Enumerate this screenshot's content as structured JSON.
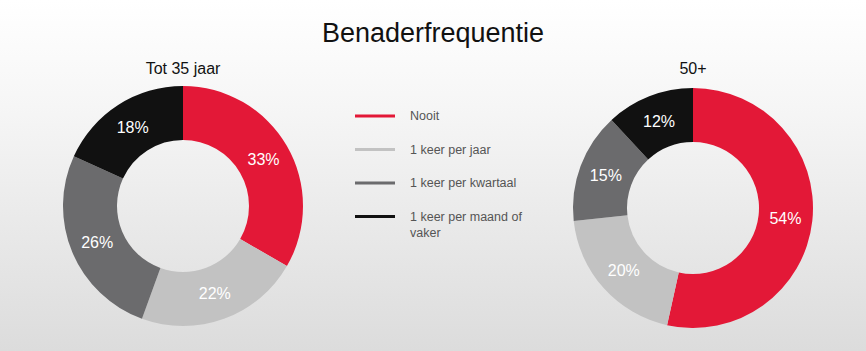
{
  "chart_data": {
    "type": "donut",
    "title": "Benaderfrequentie",
    "categories": [
      "Nooit",
      "1 keer per jaar",
      "1 keer per kwartaal",
      "1 keer per maand of vaker"
    ],
    "colors": [
      "#e31837",
      "#c2c2c2",
      "#6b6b6d",
      "#111111"
    ],
    "data_labels": true,
    "series": [
      {
        "name": "Tot 35 jaar",
        "values": [
          33,
          22,
          26,
          18
        ],
        "value_labels": [
          "33%",
          "22%",
          "26%",
          "18%"
        ]
      },
      {
        "name": "50+",
        "values": [
          54,
          20,
          15,
          12
        ],
        "value_labels": [
          "54%",
          "20%",
          "15%",
          "12%"
        ]
      }
    ]
  }
}
